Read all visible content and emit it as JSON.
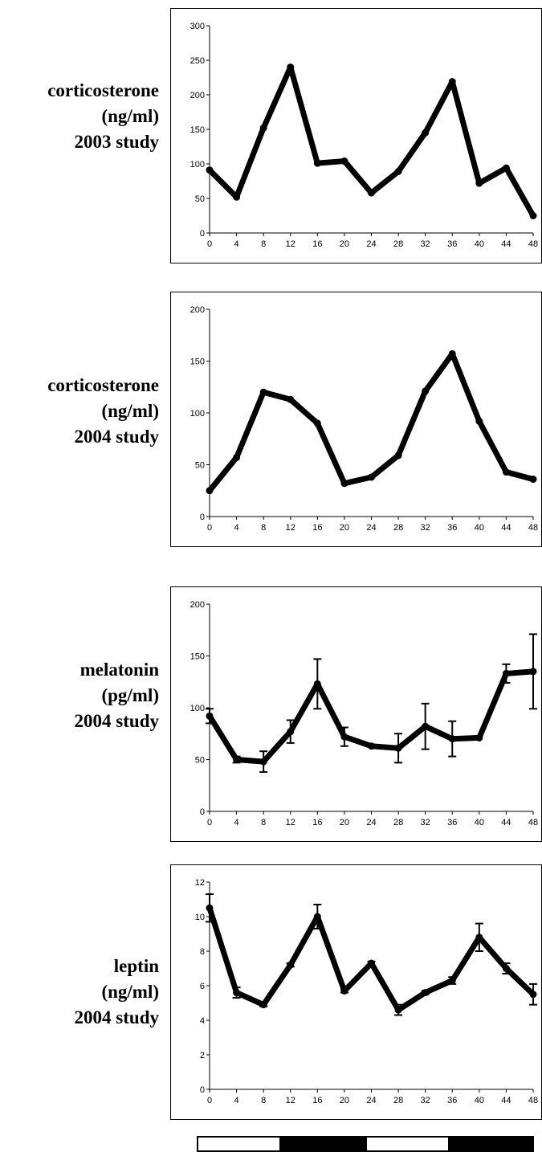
{
  "chart_data": [
    {
      "type": "line",
      "ylabel": [
        "corticosterone",
        "(ng/ml)",
        "2003 study"
      ],
      "x": [
        0,
        4,
        8,
        12,
        16,
        20,
        24,
        28,
        32,
        36,
        40,
        44,
        48
      ],
      "series": [
        {
          "values": [
            91,
            52,
            152,
            240,
            101,
            104,
            58,
            89,
            145,
            219,
            72,
            94,
            25
          ]
        }
      ],
      "ylim": [
        0,
        300
      ],
      "yticks": [
        0,
        50,
        100,
        150,
        200,
        250,
        300
      ],
      "xticks": [
        "0",
        "4",
        "8",
        "12",
        "16",
        "20",
        "24",
        "28",
        "32",
        "36",
        "40",
        "44",
        "48"
      ],
      "grid": false
    },
    {
      "type": "line",
      "ylabel": [
        "corticosterone",
        "(ng/ml)",
        "2004 study"
      ],
      "x": [
        0,
        4,
        8,
        12,
        16,
        20,
        24,
        28,
        32,
        36,
        40,
        44,
        48
      ],
      "series": [
        {
          "values": [
            25,
            57,
            120,
            113,
            90,
            32,
            38,
            59,
            121,
            157,
            92,
            43,
            36
          ]
        }
      ],
      "ylim": [
        0,
        200
      ],
      "yticks": [
        0,
        50,
        100,
        150,
        200
      ],
      "xticks": [
        "0",
        "4",
        "8",
        "12",
        "16",
        "20",
        "24",
        "28",
        "32",
        "36",
        "40",
        "44",
        "48"
      ],
      "grid": false
    },
    {
      "type": "line",
      "ylabel": [
        "melatonin",
        "(pg/ml)",
        "2004 study"
      ],
      "x": [
        0,
        4,
        8,
        12,
        16,
        20,
        24,
        28,
        32,
        36,
        40,
        44,
        48
      ],
      "series": [
        {
          "values": [
            92,
            50,
            48,
            77,
            123,
            72,
            63,
            61,
            82,
            70,
            71,
            133,
            135
          ],
          "error": [
            7,
            3,
            10,
            11,
            24,
            9,
            0,
            14,
            22,
            17,
            0,
            9,
            36
          ]
        }
      ],
      "ylim": [
        0,
        200
      ],
      "yticks": [
        0,
        50,
        100,
        150,
        200
      ],
      "xticks": [
        "0",
        "4",
        "8",
        "12",
        "16",
        "20",
        "24",
        "28",
        "32",
        "36",
        "40",
        "44",
        "48"
      ],
      "grid": false
    },
    {
      "type": "line",
      "ylabel": [
        "leptin",
        "(ng/ml)",
        "2004 study"
      ],
      "x": [
        0,
        4,
        8,
        12,
        16,
        20,
        24,
        28,
        32,
        36,
        40,
        44,
        48
      ],
      "series": [
        {
          "values": [
            10.5,
            5.6,
            4.9,
            7.2,
            10.0,
            5.7,
            7.3,
            4.6,
            5.6,
            6.3,
            8.8,
            7.0,
            5.5
          ],
          "error": [
            0.8,
            0.3,
            0.1,
            0.1,
            0.7,
            0.1,
            0.1,
            0.3,
            0.1,
            0.2,
            0.8,
            0.3,
            0.6
          ]
        }
      ],
      "ylim": [
        0,
        12
      ],
      "yticks": [
        0,
        2,
        4,
        6,
        8,
        10,
        12
      ],
      "xticks": [
        "0",
        "4",
        "8",
        "12",
        "16",
        "20",
        "24",
        "28",
        "32",
        "36",
        "40",
        "44",
        "48"
      ],
      "grid": false
    }
  ],
  "light_dark_bar": [
    "light",
    "dark",
    "light",
    "dark"
  ]
}
